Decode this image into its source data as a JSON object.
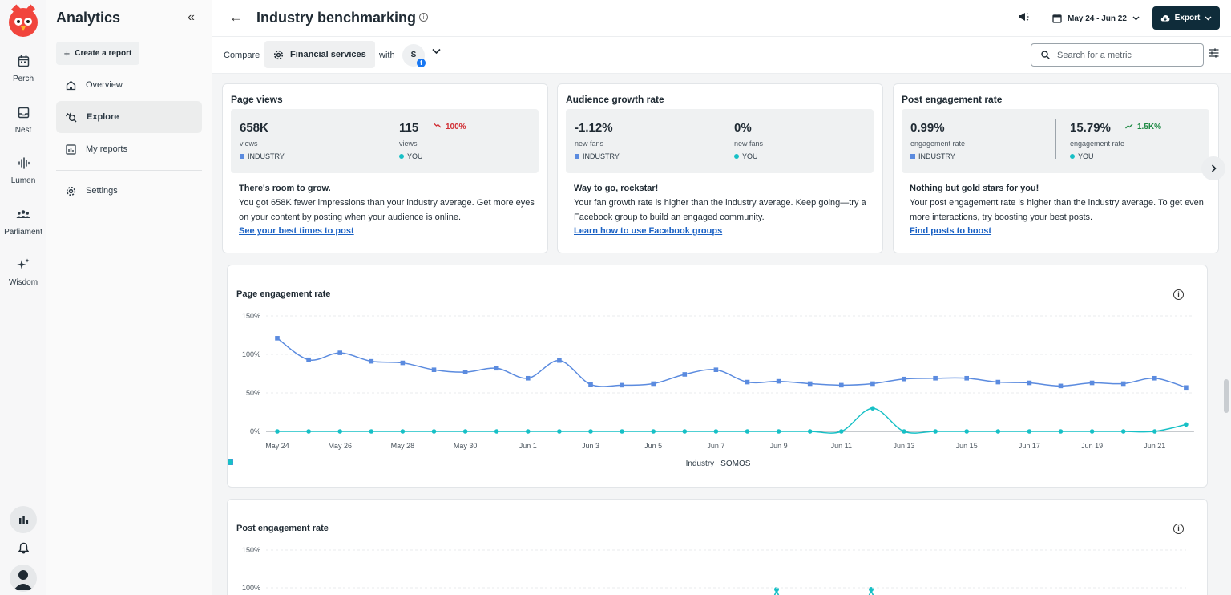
{
  "rail": {
    "items": [
      {
        "label": "Perch",
        "icon": "calendar-icon"
      },
      {
        "label": "Nest",
        "icon": "inbox-icon"
      },
      {
        "label": "Lumen",
        "icon": "waveform-icon"
      },
      {
        "label": "Parliament",
        "icon": "people-icon"
      },
      {
        "label": "Wisdom",
        "icon": "sparkle-icon"
      }
    ]
  },
  "sidebar": {
    "title": "Analytics",
    "collapse": "«",
    "create_label": "Create a report",
    "items": [
      {
        "label": "Overview"
      },
      {
        "label": "Explore"
      },
      {
        "label": "My reports"
      },
      {
        "label": "Settings"
      }
    ]
  },
  "header": {
    "back": "←",
    "title": "Industry benchmarking",
    "date_range": "May 24 - Jun 22",
    "export_label": "Export"
  },
  "compare": {
    "label": "Compare",
    "industry": "Financial services",
    "with": "with",
    "avatar": "S",
    "search_placeholder": "Search for a metric"
  },
  "cards": [
    {
      "title": "Page views",
      "industry_value": "658K",
      "industry_unit": "views",
      "industry_tag": "INDUSTRY",
      "you_value": "115",
      "you_unit": "views",
      "you_tag": "YOU",
      "delta": "100%",
      "delta_dir": "down",
      "head": "There's room to grow.",
      "body": "You got 658K fewer impressions than your industry average. Get more eyes on your content by posting when your audience is online.",
      "link": "See your best times to post"
    },
    {
      "title": "Audience growth rate",
      "industry_value": "-1.12%",
      "industry_unit": "new fans",
      "industry_tag": "INDUSTRY",
      "you_value": "0%",
      "you_unit": "new fans",
      "you_tag": "YOU",
      "delta": "",
      "delta_dir": "none",
      "head": "Way to go, rockstar!",
      "body": "Your fan growth rate is higher than the industry average. Keep going—try a Facebook group to build an engaged community.",
      "link": "Learn how to use Facebook groups"
    },
    {
      "title": "Post engagement rate",
      "industry_value": "0.99%",
      "industry_unit": "engagement rate",
      "industry_tag": "INDUSTRY",
      "you_value": "15.79%",
      "you_unit": "engagement rate",
      "you_tag": "YOU",
      "delta": "1.5K%",
      "delta_dir": "up",
      "head": "Nothing but gold stars for you!",
      "body": "Your post engagement rate is higher than the industry average. To get even more interactions, try boosting your best posts.",
      "link": "Find posts to boost"
    }
  ],
  "colors": {
    "industry": "#5b8bdf",
    "you": "#17c0c6"
  },
  "chart_data": [
    {
      "type": "line",
      "title": "Page engagement rate",
      "x": [
        "May 24",
        "May 25",
        "May 26",
        "May 27",
        "May 28",
        "May 29",
        "May 30",
        "May 31",
        "Jun 1",
        "Jun 2",
        "Jun 3",
        "Jun 4",
        "Jun 5",
        "Jun 6",
        "Jun 7",
        "Jun 8",
        "Jun 9",
        "Jun 10",
        "Jun 11",
        "Jun 12",
        "Jun 13",
        "Jun 14",
        "Jun 15",
        "Jun 16",
        "Jun 17",
        "Jun 18",
        "Jun 19",
        "Jun 20",
        "Jun 21",
        "Jun 22"
      ],
      "xticks": [
        "May 24",
        "May 26",
        "May 28",
        "May 30",
        "Jun 1",
        "Jun 3",
        "Jun 5",
        "Jun 7",
        "Jun 9",
        "Jun 11",
        "Jun 13",
        "Jun 15",
        "Jun 17",
        "Jun 19",
        "Jun 21"
      ],
      "yticks": [
        "150%",
        "100%",
        "50%",
        "0%"
      ],
      "ylim": [
        0,
        150
      ],
      "grid": true,
      "legend": "bottom-center",
      "series": [
        {
          "name": "Industry",
          "marker": "square",
          "values": [
            121,
            93,
            102,
            91,
            89,
            80,
            77,
            82,
            69,
            92,
            61,
            60,
            62,
            74,
            80,
            64,
            65,
            62,
            60,
            62,
            68,
            69,
            69,
            64,
            63,
            59,
            63,
            62,
            69,
            57
          ]
        },
        {
          "name": "SOMOS",
          "marker": "circle",
          "values": [
            0,
            0,
            0,
            0,
            0,
            0,
            0,
            0,
            0,
            0,
            0,
            0,
            0,
            0,
            0,
            0,
            0,
            0,
            0,
            30,
            0,
            0,
            0,
            0,
            0,
            0,
            0,
            0,
            0,
            9
          ]
        }
      ]
    },
    {
      "type": "line",
      "title": "Post engagement rate",
      "yticks": [
        "150%",
        "100%"
      ],
      "ylim": [
        0,
        150
      ],
      "grid": true
    }
  ]
}
